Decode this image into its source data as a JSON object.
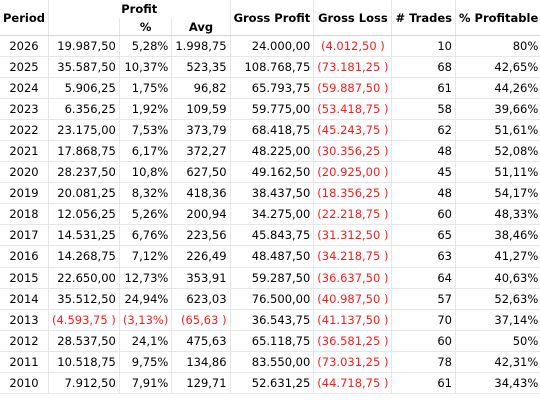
{
  "headers": {
    "period": "Period",
    "profit": "Profit",
    "pct": "%",
    "avg": "Avg",
    "gross_profit": "Gross Profit",
    "gross_loss": "Gross Loss",
    "trades": "# Trades",
    "pct_profitable": "% Profitable"
  },
  "rows": [
    {
      "period": "2026",
      "profit": "19.987,50",
      "pct": "5,28%",
      "avg": "1.998,75",
      "gross_profit": "24.000,00",
      "gross_loss": "(4.012,50 )",
      "trades": "10",
      "pct_profitable": "80%",
      "negative": false
    },
    {
      "period": "2025",
      "profit": "35.587,50",
      "pct": "10,37%",
      "avg": "523,35",
      "gross_profit": "108.768,75",
      "gross_loss": "(73.181,25 )",
      "trades": "68",
      "pct_profitable": "42,65%",
      "negative": false
    },
    {
      "period": "2024",
      "profit": "5.906,25",
      "pct": "1,75%",
      "avg": "96,82",
      "gross_profit": "65.793,75",
      "gross_loss": "(59.887,50 )",
      "trades": "61",
      "pct_profitable": "44,26%",
      "negative": false
    },
    {
      "period": "2023",
      "profit": "6.356,25",
      "pct": "1,92%",
      "avg": "109,59",
      "gross_profit": "59.775,00",
      "gross_loss": "(53.418,75 )",
      "trades": "58",
      "pct_profitable": "39,66%",
      "negative": false
    },
    {
      "period": "2022",
      "profit": "23.175,00",
      "pct": "7,53%",
      "avg": "373,79",
      "gross_profit": "68.418,75",
      "gross_loss": "(45.243,75 )",
      "trades": "62",
      "pct_profitable": "51,61%",
      "negative": false
    },
    {
      "period": "2021",
      "profit": "17.868,75",
      "pct": "6,17%",
      "avg": "372,27",
      "gross_profit": "48.225,00",
      "gross_loss": "(30.356,25 )",
      "trades": "48",
      "pct_profitable": "52,08%",
      "negative": false
    },
    {
      "period": "2020",
      "profit": "28.237,50",
      "pct": "10,8%",
      "avg": "627,50",
      "gross_profit": "49.162,50",
      "gross_loss": "(20.925,00 )",
      "trades": "45",
      "pct_profitable": "51,11%",
      "negative": false
    },
    {
      "period": "2019",
      "profit": "20.081,25",
      "pct": "8,32%",
      "avg": "418,36",
      "gross_profit": "38.437,50",
      "gross_loss": "(18.356,25 )",
      "trades": "48",
      "pct_profitable": "54,17%",
      "negative": false
    },
    {
      "period": "2018",
      "profit": "12.056,25",
      "pct": "5,26%",
      "avg": "200,94",
      "gross_profit": "34.275,00",
      "gross_loss": "(22.218,75 )",
      "trades": "60",
      "pct_profitable": "48,33%",
      "negative": false
    },
    {
      "period": "2017",
      "profit": "14.531,25",
      "pct": "6,76%",
      "avg": "223,56",
      "gross_profit": "45.843,75",
      "gross_loss": "(31.312,50 )",
      "trades": "65",
      "pct_profitable": "38,46%",
      "negative": false
    },
    {
      "period": "2016",
      "profit": "14.268,75",
      "pct": "7,12%",
      "avg": "226,49",
      "gross_profit": "48.487,50",
      "gross_loss": "(34.218,75 )",
      "trades": "63",
      "pct_profitable": "41,27%",
      "negative": false
    },
    {
      "period": "2015",
      "profit": "22.650,00",
      "pct": "12,73%",
      "avg": "353,91",
      "gross_profit": "59.287,50",
      "gross_loss": "(36.637,50 )",
      "trades": "64",
      "pct_profitable": "40,63%",
      "negative": false
    },
    {
      "period": "2014",
      "profit": "35.512,50",
      "pct": "24,94%",
      "avg": "623,03",
      "gross_profit": "76.500,00",
      "gross_loss": "(40.987,50 )",
      "trades": "57",
      "pct_profitable": "52,63%",
      "negative": false
    },
    {
      "period": "2013",
      "profit": "(4.593,75 )",
      "pct": "(3,13%)",
      "avg": "(65,63 )",
      "gross_profit": "36.543,75",
      "gross_loss": "(41.137,50 )",
      "trades": "70",
      "pct_profitable": "37,14%",
      "negative": true
    },
    {
      "period": "2012",
      "profit": "28.537,50",
      "pct": "24,1%",
      "avg": "475,63",
      "gross_profit": "65.118,75",
      "gross_loss": "(36.581,25 )",
      "trades": "60",
      "pct_profitable": "50%",
      "negative": false
    },
    {
      "period": "2011",
      "profit": "10.518,75",
      "pct": "9,75%",
      "avg": "134,86",
      "gross_profit": "83.550,00",
      "gross_loss": "(73.031,25 )",
      "trades": "78",
      "pct_profitable": "42,31%",
      "negative": false
    },
    {
      "period": "2010",
      "profit": "7.912,50",
      "pct": "7,91%",
      "avg": "129,71",
      "gross_profit": "52.631,25",
      "gross_loss": "(44.718,75 )",
      "trades": "61",
      "pct_profitable": "34,43%",
      "negative": false
    }
  ],
  "colors": {
    "negative": "#ff1a1a",
    "grid": "#e7e7e7",
    "text": "#000000"
  }
}
